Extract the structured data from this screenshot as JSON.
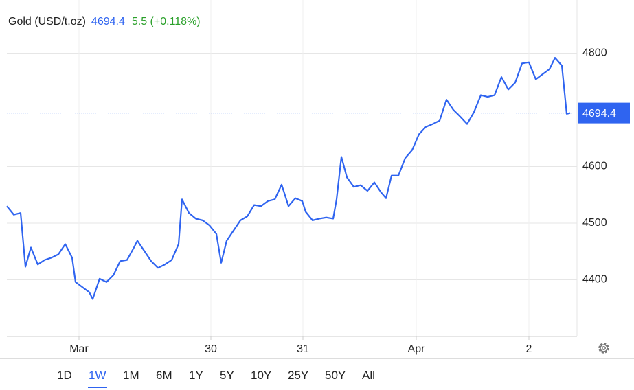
{
  "chart_data": {
    "type": "line",
    "title": "Gold (USD/t.oz)",
    "current_value": 4694.4,
    "change_label": "5.5 (+0.118%)",
    "x": [
      0,
      1,
      2,
      2.7,
      3.5,
      4.5,
      5.5,
      6.5,
      7.5,
      8.5,
      9.5,
      10,
      11,
      12,
      12.5,
      13.5,
      14.5,
      15.5,
      16.5,
      17.5,
      18.5,
      19,
      20,
      21,
      22,
      23,
      24,
      25,
      25.5,
      26.5,
      27.5,
      28.5,
      29.5,
      30.5,
      31.2,
      32,
      33,
      34,
      35,
      36,
      37,
      38,
      39,
      40,
      41,
      42,
      43,
      43.5,
      44.5,
      45.5,
      46.5,
      47.5,
      48,
      48.7,
      49.5,
      50.5,
      51.5,
      52.5,
      53.5,
      54.5,
      55.2,
      56,
      57,
      58,
      59,
      60,
      61,
      62,
      63,
      64,
      65,
      66,
      67,
      68,
      69,
      70,
      71,
      72,
      73,
      74,
      75,
      76,
      77,
      78,
      79,
      79.8,
      80.8,
      81.5,
      82
    ],
    "series": [
      {
        "name": "Gold",
        "color": "#2f64f0",
        "values": [
          4530,
          4515,
          4518,
          4423,
          4457,
          4427,
          4435,
          4439,
          4445,
          4463,
          4439,
          4396,
          4387,
          4378,
          4366,
          4402,
          4396,
          4408,
          4433,
          4435,
          4457,
          4469,
          4451,
          4433,
          4421,
          4427,
          4435,
          4463,
          4542,
          4518,
          4508,
          4505,
          4496,
          4481,
          4430,
          4469,
          4487,
          4505,
          4512,
          4532,
          4530,
          4539,
          4542,
          4568,
          4530,
          4544,
          4539,
          4520,
          4505,
          4508,
          4510,
          4508,
          4542,
          4617,
          4581,
          4564,
          4567,
          4557,
          4572,
          4554,
          4544,
          4584,
          4584,
          4615,
          4629,
          4657,
          4670,
          4675,
          4681,
          4718,
          4700,
          4688,
          4675,
          4696,
          4726,
          4723,
          4726,
          4758,
          4736,
          4748,
          4782,
          4784,
          4754,
          4763,
          4772,
          4792,
          4778,
          4693,
          4694.4
        ]
      }
    ],
    "xlim": [
      0,
      83
    ],
    "xticks": [
      {
        "value": 10.5,
        "label": "Mar"
      },
      {
        "value": 29.7,
        "label": "30"
      },
      {
        "value": 43.1,
        "label": "31"
      },
      {
        "value": 59.6,
        "label": "Apr"
      },
      {
        "value": 76,
        "label": "2"
      }
    ],
    "ylim": [
      4300,
      4880
    ],
    "yticks": [
      4400,
      4500,
      4600,
      4800
    ],
    "grid": true
  },
  "ranges": [
    "1D",
    "1W",
    "1M",
    "6M",
    "1Y",
    "5Y",
    "10Y",
    "25Y",
    "50Y",
    "All"
  ],
  "selected_range": 1
}
